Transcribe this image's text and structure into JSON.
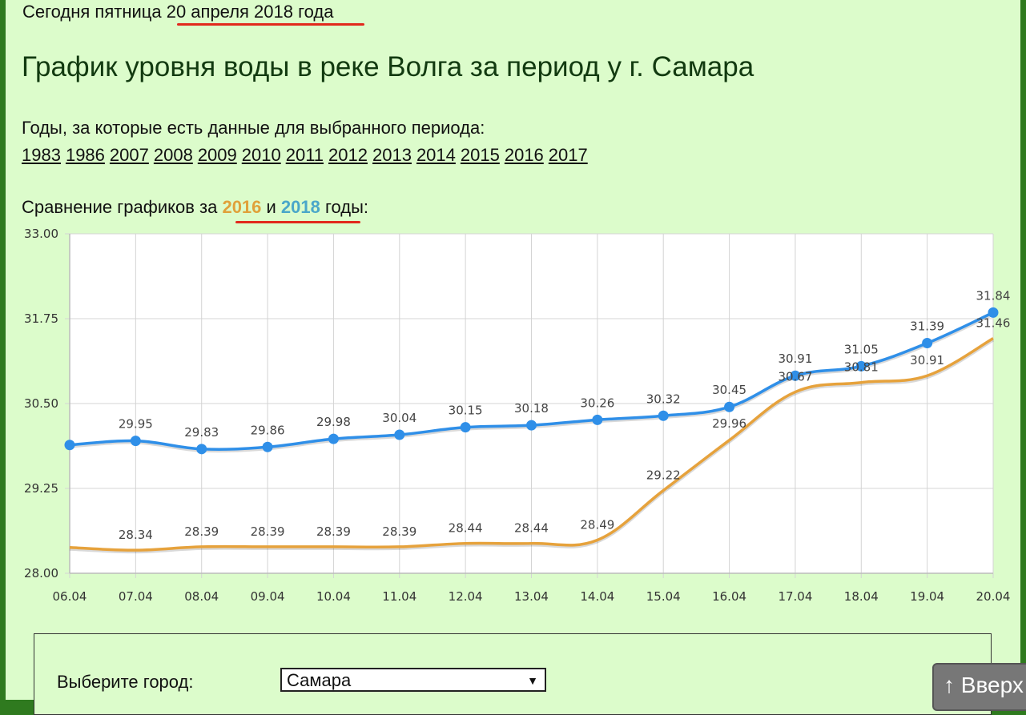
{
  "header": {
    "date_prefix": "Сегодня пятница ",
    "date_value": "20 апреля 2018 года",
    "title": "График уровня воды в реке Волга за период у г. Самара",
    "years_prefix": "Годы, за которые есть данные для выбранного периода:",
    "years": [
      "1983",
      "1986",
      "2007",
      "2008",
      "2009",
      "2010",
      "2011",
      "2012",
      "2013",
      "2014",
      "2015",
      "2016",
      "2017"
    ],
    "compare_prefix": "Сравнение графиков за ",
    "compare_year1": "2016",
    "compare_and": " и ",
    "compare_year2": "2018",
    "compare_suffix": " годы:"
  },
  "chart_data": {
    "type": "line",
    "categories": [
      "06.04",
      "07.04",
      "08.04",
      "09.04",
      "10.04",
      "11.04",
      "12.04",
      "13.04",
      "14.04",
      "15.04",
      "16.04",
      "17.04",
      "18.04",
      "19.04",
      "20.04"
    ],
    "y_ticks": [
      "33.00",
      "31.75",
      "30.50",
      "29.25",
      "28.00"
    ],
    "ylim": [
      28.0,
      33.0
    ],
    "grid": true,
    "series": [
      {
        "name": "2018",
        "color": "#2f8fe8",
        "values": [
          29.89,
          29.95,
          29.83,
          29.86,
          29.98,
          30.04,
          30.15,
          30.18,
          30.26,
          30.32,
          30.45,
          30.91,
          31.05,
          31.39,
          31.84
        ],
        "labels": [
          "",
          "29.95",
          "29.83",
          "29.86",
          "29.98",
          "30.04",
          "30.15",
          "30.18",
          "30.26",
          "30.32",
          "30.45",
          "30.91",
          "31.05",
          "31.39",
          "31.84"
        ]
      },
      {
        "name": "2016",
        "color": "#e6a23c",
        "values": [
          28.38,
          28.34,
          28.39,
          28.39,
          28.39,
          28.39,
          28.44,
          28.44,
          28.49,
          29.22,
          29.96,
          30.67,
          30.81,
          30.91,
          31.46
        ],
        "labels": [
          "",
          "28.34",
          "28.39",
          "28.39",
          "28.39",
          "28.39",
          "28.44",
          "28.44",
          "28.49",
          "29.22",
          "29.96",
          "30.67",
          "30.81",
          "30.91",
          "31.46"
        ]
      }
    ]
  },
  "controls": {
    "city_label": "Выберите город:",
    "city_value": "Самара",
    "dropdown_arrow": "▼"
  },
  "top_button": {
    "label": "↑ Вверх"
  },
  "colors": {
    "background": "#dcfccb",
    "underline": "#e2281c"
  }
}
